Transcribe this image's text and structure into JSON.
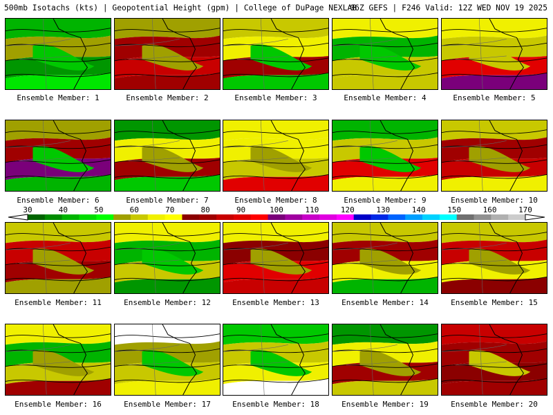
{
  "header": {
    "left": "500mb Isotachs (kts) | Geopotential Height (gpm) | College of DuPage NEXLAB",
    "right": "06Z GEFS | F246 Valid: 12Z WED NOV 19 2025"
  },
  "legend": {
    "ticks": [
      "30",
      "40",
      "50",
      "60",
      "70",
      "80",
      "90",
      "100",
      "110",
      "120",
      "130",
      "140",
      "150",
      "160",
      "170"
    ],
    "colors": [
      "#006400",
      "#008c00",
      "#00b400",
      "#00dc00",
      "#00ff00",
      "#a0a000",
      "#c8c800",
      "#f0f000",
      "#ffff00",
      "#8b0000",
      "#a00000",
      "#c80000",
      "#e10000",
      "#ff0000",
      "#7a007a",
      "#a000a0",
      "#c800c8",
      "#e000e0",
      "#ff00ff",
      "#0000c8",
      "#0028e6",
      "#0064ff",
      "#00a0ff",
      "#00d2ff",
      "#00ffff",
      "#707070",
      "#909090",
      "#b0b0b0",
      "#cccccc"
    ]
  },
  "members": [
    {
      "label": "Ensemble Member: 1",
      "scheme": [
        1,
        1,
        0,
        0,
        0
      ]
    },
    {
      "label": "Ensemble Member: 2",
      "scheme": [
        1,
        2,
        2,
        3,
        1
      ]
    },
    {
      "label": "Ensemble Member: 3",
      "scheme": [
        1,
        1,
        3,
        0,
        0
      ]
    },
    {
      "label": "Ensemble Member: 4",
      "scheme": [
        1,
        1,
        2,
        1,
        0
      ]
    },
    {
      "label": "Ensemble Member: 5",
      "scheme": [
        2,
        2,
        3,
        3,
        2
      ]
    },
    {
      "label": "Ensemble Member: 6",
      "scheme": [
        1,
        2,
        3,
        1,
        0
      ]
    },
    {
      "label": "Ensemble Member: 7",
      "scheme": [
        0,
        1,
        3,
        0,
        1
      ]
    },
    {
      "label": "Ensemble Member: 8",
      "scheme": [
        1,
        2,
        2,
        3,
        1
      ]
    },
    {
      "label": "Ensemble Member: 9",
      "scheme": [
        1,
        2,
        3,
        1,
        0
      ]
    },
    {
      "label": "Ensemble Member: 10",
      "scheme": [
        2,
        2,
        2,
        2,
        1
      ]
    },
    {
      "label": "Ensemble Member: 11",
      "scheme": [
        1,
        2,
        3,
        1,
        1
      ]
    },
    {
      "label": "Ensemble Member: 12",
      "scheme": [
        1,
        1,
        2,
        0,
        0
      ]
    },
    {
      "label": "Ensemble Member: 13",
      "scheme": [
        2,
        3,
        3,
        2,
        1
      ]
    },
    {
      "label": "Ensemble Member: 14",
      "scheme": [
        2,
        2,
        1,
        1,
        1
      ]
    },
    {
      "label": "Ensemble Member: 15",
      "scheme": [
        1,
        2,
        2,
        3,
        1
      ]
    },
    {
      "label": "Ensemble Member: 16",
      "scheme": [
        1,
        1,
        2,
        2,
        1
      ]
    },
    {
      "label": "Ensemble Member: 17",
      "scheme": [
        0,
        1,
        1,
        1,
        0
      ]
    },
    {
      "label": "Ensemble Member: 18",
      "scheme": [
        0,
        1,
        1,
        0,
        0
      ]
    },
    {
      "label": "Ensemble Member: 19",
      "scheme": [
        0,
        1,
        3,
        2,
        1
      ]
    },
    {
      "label": "Ensemble Member: 20",
      "scheme": [
        2,
        3,
        3,
        2,
        2
      ]
    }
  ]
}
